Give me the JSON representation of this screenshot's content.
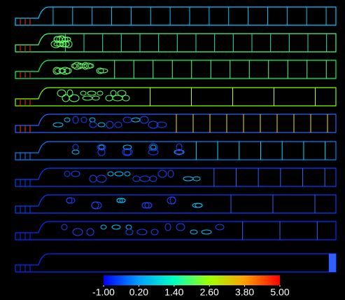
{
  "chart_data": {
    "type": "contour",
    "zlim": [
      -1,
      5
    ],
    "zticks": [
      {
        "value": -1,
        "label": "-1.00"
      },
      {
        "value": 0.2,
        "label": "0.20"
      },
      {
        "value": 1.4,
        "label": "1.40"
      },
      {
        "value": 2.6,
        "label": "2.60"
      },
      {
        "value": 3.8,
        "label": "3.80"
      },
      {
        "value": 5,
        "label": "5.00"
      }
    ]
  }
}
